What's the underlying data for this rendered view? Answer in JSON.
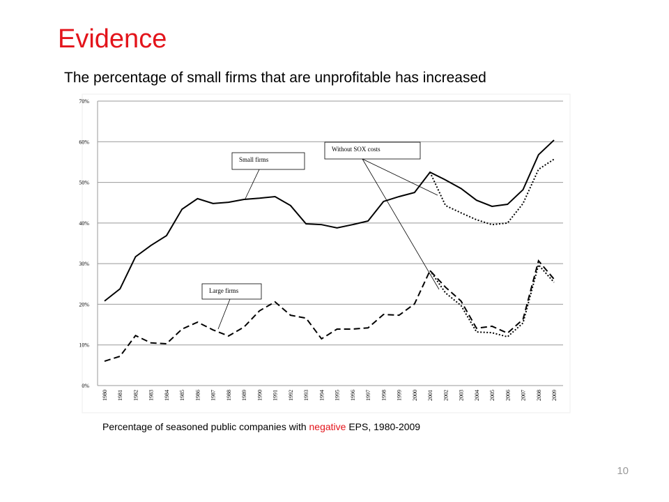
{
  "title": "Evidence",
  "subtitle": "The percentage of small firms that are unprofitable has increased",
  "caption": [
    "Percentage of seasoned public companies with ",
    "negative",
    " EPS, 1980-2009"
  ],
  "page_number": "10",
  "chart_data": {
    "type": "line",
    "categories": [
      "1980",
      "1981",
      "1982",
      "1983",
      "1984",
      "1985",
      "1986",
      "1987",
      "1988",
      "1989",
      "1990",
      "1991",
      "1992",
      "1993",
      "1994",
      "1995",
      "1996",
      "1997",
      "1998",
      "1999",
      "2000",
      "2001",
      "2002",
      "2003",
      "2004",
      "2005",
      "2006",
      "2007",
      "2008",
      "2009"
    ],
    "series": [
      {
        "name": "Small firms",
        "color": "#000000",
        "dash": "solid",
        "values": [
          20.8,
          23.8,
          31.7,
          34.5,
          36.9,
          43.4,
          46,
          44.8,
          45.1,
          45.8,
          46.1,
          46.5,
          44.3,
          39.8,
          39.6,
          38.8,
          39.6,
          40.5,
          45.3,
          46.5,
          47.5,
          52.5,
          50.6,
          48.5,
          45.6,
          44.1,
          44.6,
          48.2,
          56.8,
          60.4
        ]
      },
      {
        "color": "#000000",
        "dash": "dotted",
        "values": [
          null,
          null,
          null,
          null,
          null,
          null,
          null,
          null,
          null,
          null,
          null,
          null,
          null,
          null,
          null,
          null,
          null,
          null,
          null,
          null,
          null,
          52.5,
          44.3,
          42.5,
          40.8,
          39.6,
          40,
          44.8,
          53.2,
          55.7
        ]
      },
      {
        "name": "Large firms",
        "color": "#000000",
        "dash": "dashed",
        "values": [
          6,
          7.2,
          12.3,
          10.5,
          10.3,
          13.9,
          15.6,
          13.7,
          12.2,
          14.4,
          18.4,
          20.6,
          17.3,
          16.6,
          11.5,
          13.9,
          13.9,
          14.2,
          17.5,
          17.3,
          20.1,
          28.3,
          24.2,
          20.8,
          14.1,
          14.6,
          12.9,
          16.3,
          30.7,
          26.2
        ]
      },
      {
        "color": "#000000",
        "dash": "dotted",
        "values": [
          null,
          null,
          null,
          null,
          null,
          null,
          null,
          null,
          null,
          null,
          null,
          null,
          null,
          null,
          null,
          null,
          null,
          null,
          null,
          null,
          null,
          28.3,
          22.8,
          19.7,
          13.2,
          13,
          12,
          15.4,
          29.7,
          25.4
        ]
      }
    ],
    "annotation": "Without SOX costs",
    "ylim": [
      0,
      70
    ],
    "yticks": [
      {
        "value": 0,
        "label": "0%"
      },
      {
        "value": 10,
        "label": "10%"
      },
      {
        "value": 20,
        "label": "20%"
      },
      {
        "value": 30,
        "label": "30%"
      },
      {
        "value": 40,
        "label": "40%"
      },
      {
        "value": 50,
        "label": "50%"
      },
      {
        "value": 60,
        "label": "60%"
      },
      {
        "value": 70,
        "label": "70%"
      }
    ],
    "grid": true
  }
}
